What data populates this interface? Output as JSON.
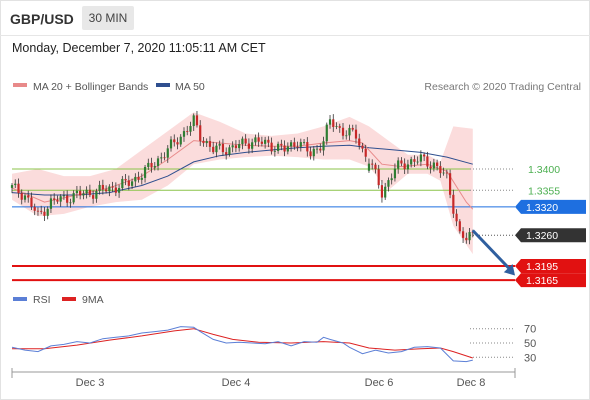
{
  "header": {
    "pair": "GBP/USD",
    "timeframe": "30 MIN"
  },
  "date_line": "Monday, December 7, 2020 11:05:11 AM CET",
  "legend": {
    "bollinger": {
      "label": "MA 20 + Bollinger Bands",
      "color": "#e88a8a"
    },
    "ma50": {
      "label": "MA 50",
      "color": "#2f4f8f"
    },
    "rsi": {
      "label": "RSI",
      "color": "#5b7fd6"
    },
    "rsi_ma": {
      "label": "9MA",
      "color": "#dd2222"
    }
  },
  "copyright": "Research © 2020 Trading Central",
  "colors": {
    "bull": "#2e7d32",
    "bear": "#c62828",
    "band_fill": "#fbdcdc",
    "resistance": "#8bc34a",
    "resistance_text": "#4caf50",
    "current": "#1e6fe0",
    "support": "#e11111",
    "price_tag": "#333333",
    "arrow": "#2f5f9f"
  },
  "chart_data": [
    {
      "type": "candlestick",
      "title": "GBP/USD",
      "x_ticks": [
        "Dec 3",
        "Dec 4",
        "Dec 6",
        "Dec 8"
      ],
      "levels": [
        {
          "name": "resistance",
          "value": 1.34,
          "label": "1.3400"
        },
        {
          "name": "resistance",
          "value": 1.3355,
          "label": "1.3355"
        },
        {
          "name": "current",
          "value": 1.332,
          "label": "1.3320"
        },
        {
          "name": "last",
          "value": 1.326,
          "label": "1.3260"
        },
        {
          "name": "support",
          "value": 1.3195,
          "label": "1.3195"
        },
        {
          "name": "support",
          "value": 1.3165,
          "label": "1.3165"
        }
      ],
      "close_path": [
        [
          0,
          1.336
        ],
        [
          4,
          1.3345
        ],
        [
          8,
          1.33
        ],
        [
          12,
          1.333
        ],
        [
          20,
          1.3345
        ],
        [
          28,
          1.3355
        ],
        [
          36,
          1.337
        ],
        [
          42,
          1.34
        ],
        [
          48,
          1.344
        ],
        [
          52,
          1.347
        ],
        [
          56,
          1.35
        ],
        [
          58,
          1.347
        ],
        [
          62,
          1.344
        ],
        [
          68,
          1.3445
        ],
        [
          74,
          1.346
        ],
        [
          80,
          1.345
        ],
        [
          84,
          1.344
        ],
        [
          88,
          1.346
        ],
        [
          92,
          1.343
        ],
        [
          96,
          1.346
        ],
        [
          98,
          1.35
        ],
        [
          102,
          1.348
        ],
        [
          106,
          1.347
        ],
        [
          108,
          1.344
        ],
        [
          110,
          1.342
        ],
        [
          114,
          1.335
        ],
        [
          118,
          1.34
        ],
        [
          122,
          1.3415
        ],
        [
          126,
          1.342
        ],
        [
          130,
          1.341
        ],
        [
          134,
          1.338
        ],
        [
          138,
          1.326
        ],
        [
          140,
          1.325
        ],
        [
          142,
          1.3265
        ]
      ],
      "gap_after_index": 109,
      "ma20": [
        [
          0,
          1.336
        ],
        [
          10,
          1.333
        ],
        [
          20,
          1.3345
        ],
        [
          30,
          1.336
        ],
        [
          40,
          1.3385
        ],
        [
          48,
          1.342
        ],
        [
          56,
          1.346
        ],
        [
          64,
          1.3455
        ],
        [
          72,
          1.345
        ],
        [
          80,
          1.3448
        ],
        [
          88,
          1.3448
        ],
        [
          96,
          1.3455
        ],
        [
          104,
          1.346
        ],
        [
          108,
          1.3455
        ],
        [
          114,
          1.341
        ],
        [
          120,
          1.3405
        ],
        [
          128,
          1.341
        ],
        [
          134,
          1.3395
        ],
        [
          140,
          1.333
        ],
        [
          142,
          1.3315
        ]
      ],
      "ma50": [
        [
          0,
          1.335
        ],
        [
          10,
          1.3345
        ],
        [
          20,
          1.3345
        ],
        [
          30,
          1.335
        ],
        [
          40,
          1.3365
        ],
        [
          48,
          1.3385
        ],
        [
          56,
          1.3415
        ],
        [
          64,
          1.3428
        ],
        [
          72,
          1.3435
        ],
        [
          80,
          1.344
        ],
        [
          88,
          1.3445
        ],
        [
          96,
          1.3448
        ],
        [
          104,
          1.345
        ],
        [
          110,
          1.3445
        ],
        [
          118,
          1.344
        ],
        [
          126,
          1.3435
        ],
        [
          134,
          1.3425
        ],
        [
          142,
          1.341
        ]
      ],
      "bb_upper": [
        [
          0,
          1.339
        ],
        [
          8,
          1.34
        ],
        [
          16,
          1.3385
        ],
        [
          24,
          1.3385
        ],
        [
          32,
          1.34
        ],
        [
          40,
          1.344
        ],
        [
          48,
          1.348
        ],
        [
          56,
          1.352
        ],
        [
          64,
          1.35
        ],
        [
          72,
          1.3475
        ],
        [
          80,
          1.347
        ],
        [
          88,
          1.3475
        ],
        [
          96,
          1.349
        ],
        [
          104,
          1.351
        ],
        [
          110,
          1.349
        ],
        [
          116,
          1.346
        ],
        [
          122,
          1.343
        ],
        [
          128,
          1.343
        ],
        [
          132,
          1.3415
        ],
        [
          136,
          1.349
        ],
        [
          142,
          1.3485
        ]
      ],
      "bb_lower": [
        [
          0,
          1.3335
        ],
        [
          8,
          1.33
        ],
        [
          16,
          1.3305
        ],
        [
          24,
          1.332
        ],
        [
          32,
          1.333
        ],
        [
          40,
          1.3335
        ],
        [
          48,
          1.3365
        ],
        [
          56,
          1.341
        ],
        [
          64,
          1.342
        ],
        [
          72,
          1.3425
        ],
        [
          80,
          1.3428
        ],
        [
          88,
          1.3425
        ],
        [
          96,
          1.342
        ],
        [
          104,
          1.342
        ],
        [
          110,
          1.3405
        ],
        [
          116,
          1.3355
        ],
        [
          122,
          1.339
        ],
        [
          128,
          1.339
        ],
        [
          132,
          1.3375
        ],
        [
          136,
          1.328
        ],
        [
          142,
          1.322
        ]
      ],
      "forecast_arrow": {
        "from": [
          142,
          1.327
        ],
        "to": [
          155,
          1.3175
        ]
      }
    },
    {
      "type": "line",
      "title": "RSI",
      "y_ticks": [
        70,
        50,
        30
      ],
      "x_ticks": [
        "Dec 3",
        "Dec 4",
        "Dec 6",
        "Dec 8"
      ],
      "series": [
        {
          "name": "RSI",
          "values": [
            [
              0,
              44
            ],
            [
              4,
              40
            ],
            [
              8,
              38
            ],
            [
              12,
              46
            ],
            [
              16,
              48
            ],
            [
              20,
              52
            ],
            [
              24,
              50
            ],
            [
              28,
              56
            ],
            [
              32,
              58
            ],
            [
              36,
              60
            ],
            [
              40,
              64
            ],
            [
              44,
              66
            ],
            [
              48,
              68
            ],
            [
              52,
              73
            ],
            [
              56,
              72
            ],
            [
              58,
              66
            ],
            [
              62,
              55
            ],
            [
              66,
              50
            ],
            [
              70,
              51
            ],
            [
              74,
              50
            ],
            [
              78,
              49
            ],
            [
              82,
              52
            ],
            [
              86,
              46
            ],
            [
              90,
              52
            ],
            [
              94,
              51
            ],
            [
              96,
              58
            ],
            [
              98,
              55
            ],
            [
              102,
              50
            ],
            [
              104,
              44
            ],
            [
              108,
              35
            ],
            [
              112,
              40
            ],
            [
              116,
              36
            ],
            [
              120,
              38
            ],
            [
              124,
              44
            ],
            [
              128,
              45
            ],
            [
              132,
              43
            ],
            [
              136,
              25
            ],
            [
              140,
              24
            ],
            [
              142,
              26
            ]
          ]
        },
        {
          "name": "9MA",
          "values": [
            [
              0,
              42
            ],
            [
              10,
              42
            ],
            [
              20,
              47
            ],
            [
              30,
              54
            ],
            [
              40,
              60
            ],
            [
              50,
              67
            ],
            [
              56,
              70
            ],
            [
              62,
              62
            ],
            [
              68,
              55
            ],
            [
              76,
              51
            ],
            [
              86,
              50
            ],
            [
              96,
              52
            ],
            [
              104,
              50
            ],
            [
              110,
              43
            ],
            [
              118,
              40
            ],
            [
              126,
              42
            ],
            [
              132,
              43
            ],
            [
              136,
              38
            ],
            [
              142,
              29
            ]
          ]
        }
      ]
    }
  ]
}
